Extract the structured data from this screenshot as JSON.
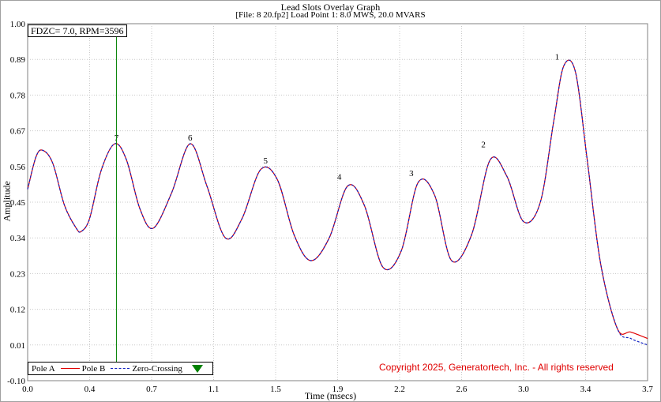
{
  "chart_data": {
    "type": "line",
    "title": "Lead Slots Overlay Graph",
    "subtitle": "[File: 8 20.fp2]  Load Point 1:    8.0 MWS,  20.0 MVARS",
    "xlabel": "Time (msecs)",
    "ylabel": "Amplitude",
    "xlim": [
      0.0,
      3.7
    ],
    "ylim": [
      -0.1,
      1.0
    ],
    "x_ticks": [
      "0.0",
      "0.4",
      "0.7",
      "1.1",
      "1.5",
      "1.9",
      "2.2",
      "2.6",
      "3.0",
      "3.4",
      "3.7"
    ],
    "y_ticks": [
      "-0.10",
      "0.01",
      "0.12",
      "0.23",
      "0.34",
      "0.45",
      "0.56",
      "0.67",
      "0.78",
      "0.89",
      "1.00"
    ],
    "grid": true,
    "legend_placement": "bottom-left",
    "series": [
      {
        "name": "Pole A",
        "color": "#000000",
        "style": "none",
        "x": [],
        "values": []
      },
      {
        "name": "Pole B",
        "color": "#e00000",
        "style": "solid",
        "x": [
          0.0,
          0.05,
          0.09,
          0.15,
          0.22,
          0.29,
          0.32,
          0.37,
          0.44,
          0.52,
          0.59,
          0.67,
          0.75,
          0.86,
          0.97,
          1.07,
          1.18,
          1.28,
          1.39,
          1.49,
          1.59,
          1.69,
          1.8,
          1.91,
          2.01,
          2.12,
          2.23,
          2.33,
          2.43,
          2.53,
          2.65,
          2.76,
          2.86,
          2.96,
          3.06,
          3.14,
          3.2,
          3.27,
          3.34,
          3.42,
          3.52,
          3.6,
          3.7
        ],
        "values": [
          0.49,
          0.59,
          0.61,
          0.57,
          0.44,
          0.37,
          0.36,
          0.4,
          0.55,
          0.63,
          0.58,
          0.43,
          0.37,
          0.48,
          0.63,
          0.5,
          0.34,
          0.4,
          0.55,
          0.52,
          0.35,
          0.27,
          0.34,
          0.5,
          0.44,
          0.25,
          0.3,
          0.51,
          0.47,
          0.27,
          0.35,
          0.58,
          0.53,
          0.39,
          0.45,
          0.7,
          0.87,
          0.85,
          0.58,
          0.26,
          0.06,
          0.05,
          0.03
        ]
      },
      {
        "name": "Zero-Crossing",
        "color": "#1020c0",
        "style": "dashed",
        "x": [
          0.0,
          0.05,
          0.09,
          0.15,
          0.22,
          0.29,
          0.32,
          0.37,
          0.44,
          0.52,
          0.59,
          0.67,
          0.75,
          0.86,
          0.97,
          1.07,
          1.18,
          1.28,
          1.39,
          1.49,
          1.59,
          1.69,
          1.8,
          1.91,
          2.01,
          2.12,
          2.23,
          2.33,
          2.43,
          2.53,
          2.65,
          2.76,
          2.86,
          2.96,
          3.06,
          3.14,
          3.2,
          3.27,
          3.34,
          3.42,
          3.52,
          3.6,
          3.7
        ],
        "values": [
          0.49,
          0.59,
          0.61,
          0.57,
          0.44,
          0.37,
          0.36,
          0.4,
          0.55,
          0.63,
          0.58,
          0.43,
          0.37,
          0.48,
          0.63,
          0.5,
          0.34,
          0.4,
          0.55,
          0.52,
          0.35,
          0.27,
          0.34,
          0.5,
          0.44,
          0.25,
          0.3,
          0.51,
          0.47,
          0.27,
          0.35,
          0.58,
          0.53,
          0.39,
          0.45,
          0.7,
          0.87,
          0.85,
          0.58,
          0.26,
          0.06,
          0.03,
          0.01
        ]
      }
    ],
    "peak_labels": [
      {
        "label": "7",
        "x": 0.53,
        "y": 0.63
      },
      {
        "label": "6",
        "x": 0.97,
        "y": 0.63
      },
      {
        "label": "5",
        "x": 1.42,
        "y": 0.56
      },
      {
        "label": "4",
        "x": 1.86,
        "y": 0.51
      },
      {
        "label": "3",
        "x": 2.29,
        "y": 0.52
      },
      {
        "label": "2",
        "x": 2.72,
        "y": 0.61
      },
      {
        "label": "1",
        "x": 3.16,
        "y": 0.88
      }
    ],
    "cursor": {
      "x": 0.53,
      "color": "#008000",
      "label": "FDZC= 7.0, RPM=3596"
    }
  },
  "legend": {
    "pole_a": "Pole A",
    "pole_b": "Pole B",
    "zero_crossing": "Zero-Crossing",
    "marker_icon": "green-down-triangle"
  },
  "copyright": "Copyright 2025, Generatortech, Inc. - All rights reserved"
}
